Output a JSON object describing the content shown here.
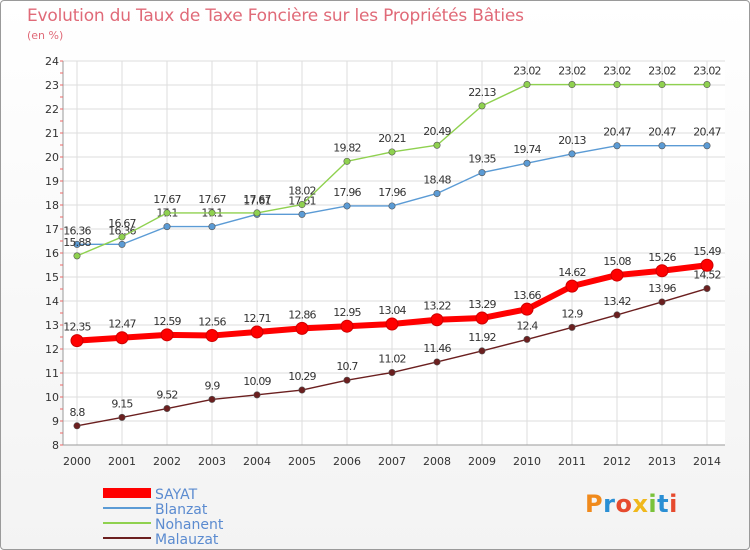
{
  "title": "Evolution du Taux de Taxe Foncière sur les Propriétés Bâties",
  "unit_label": "(en %)",
  "logo": {
    "text": "Proxiti",
    "letters": [
      {
        "c": "P",
        "color": "#f08a1c"
      },
      {
        "c": "r",
        "color": "#2a8fd4"
      },
      {
        "c": "o",
        "color": "#e64a2e"
      },
      {
        "c": "x",
        "color": "#f0b81c"
      },
      {
        "c": "i",
        "color": "#7ac23a"
      },
      {
        "c": "t",
        "color": "#2a8fd4"
      },
      {
        "c": "i",
        "color": "#e64a2e"
      }
    ]
  },
  "chart_data": {
    "type": "line",
    "title": "Evolution du Taux de Taxe Foncière sur les Propriétés Bâties",
    "ylabel": "(en %)",
    "ylim": [
      8,
      24
    ],
    "yticks": [
      8,
      9,
      10,
      11,
      12,
      13,
      14,
      15,
      16,
      17,
      18,
      19,
      20,
      21,
      22,
      23,
      24
    ],
    "x": [
      "2000",
      "2001",
      "2002",
      "2003",
      "2004",
      "2005",
      "2006",
      "2007",
      "2008",
      "2009",
      "2010",
      "2011",
      "2012",
      "2013",
      "2014"
    ],
    "grid": true,
    "legend": "bottom-left",
    "series": [
      {
        "name": "Malauzat",
        "color": "#6b1f1f",
        "values": [
          8.8,
          9.15,
          9.52,
          9.9,
          10.09,
          10.29,
          10.7,
          11.02,
          11.46,
          11.92,
          12.4,
          12.9,
          13.42,
          13.96,
          14.52
        ],
        "labels": [
          "8.8",
          "9.15",
          "9.52",
          "9.9",
          "10.09",
          "10.29",
          "10.7",
          "11.02",
          "11.46",
          "11.92",
          "12.4",
          "12.9",
          "13.42",
          "13.96",
          "14.52"
        ]
      },
      {
        "name": "Blanzat",
        "color": "#5b9bd5",
        "values": [
          16.36,
          16.36,
          17.1,
          17.1,
          17.61,
          17.61,
          17.96,
          17.96,
          18.48,
          19.35,
          19.74,
          20.13,
          20.47,
          20.47,
          20.47
        ],
        "labels": [
          "16.36",
          "16.36",
          "17.1",
          "17.1",
          "17.61",
          "17.61",
          "17.96",
          "17.96",
          "18.48",
          "19.35",
          "19.74",
          "20.13",
          "20.47",
          "20.47",
          "20.47"
        ]
      },
      {
        "name": "Nohanent",
        "color": "#8fd14f",
        "values": [
          15.88,
          16.67,
          17.67,
          17.67,
          17.67,
          18.02,
          19.82,
          20.21,
          20.49,
          22.13,
          23.02,
          23.02,
          23.02,
          23.02,
          23.02
        ],
        "labels": [
          "15.88",
          "16.67",
          "17.67",
          "17.67",
          "17.67",
          "18.02",
          "19.82",
          "20.21",
          "20.49",
          "22.13",
          "23.02",
          "23.02",
          "23.02",
          "23.02",
          "23.02"
        ]
      },
      {
        "name": "SAYAT",
        "color": "#ff0000",
        "values": [
          12.35,
          12.47,
          12.59,
          12.56,
          12.71,
          12.86,
          12.95,
          13.04,
          13.22,
          13.29,
          13.66,
          14.62,
          15.08,
          15.26,
          15.49
        ],
        "labels": [
          "12.35",
          "12.47",
          "12.59",
          "12.56",
          "12.71",
          "12.86",
          "12.95",
          "13.04",
          "13.22",
          "13.29",
          "13.66",
          "14.62",
          "15.08",
          "15.26",
          "15.49"
        ]
      }
    ],
    "legend_order": [
      "SAYAT",
      "Blanzat",
      "Nohanent",
      "Malauzat"
    ]
  }
}
